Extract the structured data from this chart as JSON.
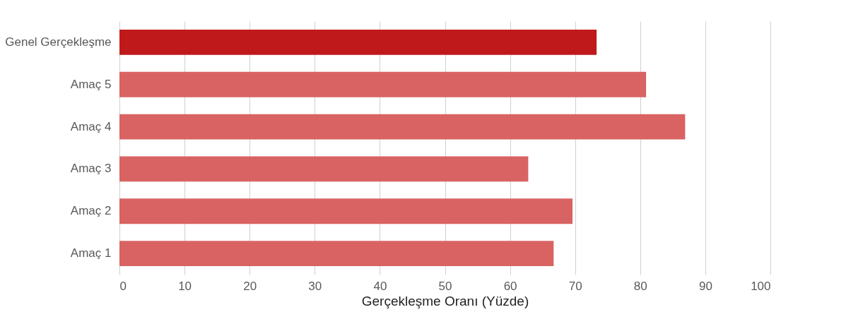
{
  "chart_data": {
    "type": "bar",
    "orientation": "horizontal",
    "xlabel": "Gerçekleşme Oranı (Yüzde)",
    "categories": [
      "Genel Gerçekleşme",
      "Amaç 5",
      "Amaç 4",
      "Amaç 3",
      "Amaç 2",
      "Amaç 1"
    ],
    "values": [
      73.3,
      80.9,
      86.9,
      62.8,
      69.6,
      66.7
    ],
    "colors": [
      "#c0191b",
      "#d96363",
      "#d96363",
      "#d96363",
      "#d96363",
      "#d96363"
    ],
    "xlim": [
      0,
      100
    ],
    "xticks": [
      0,
      10,
      20,
      30,
      40,
      50,
      60,
      70,
      80,
      90,
      100
    ],
    "grid": "x"
  }
}
